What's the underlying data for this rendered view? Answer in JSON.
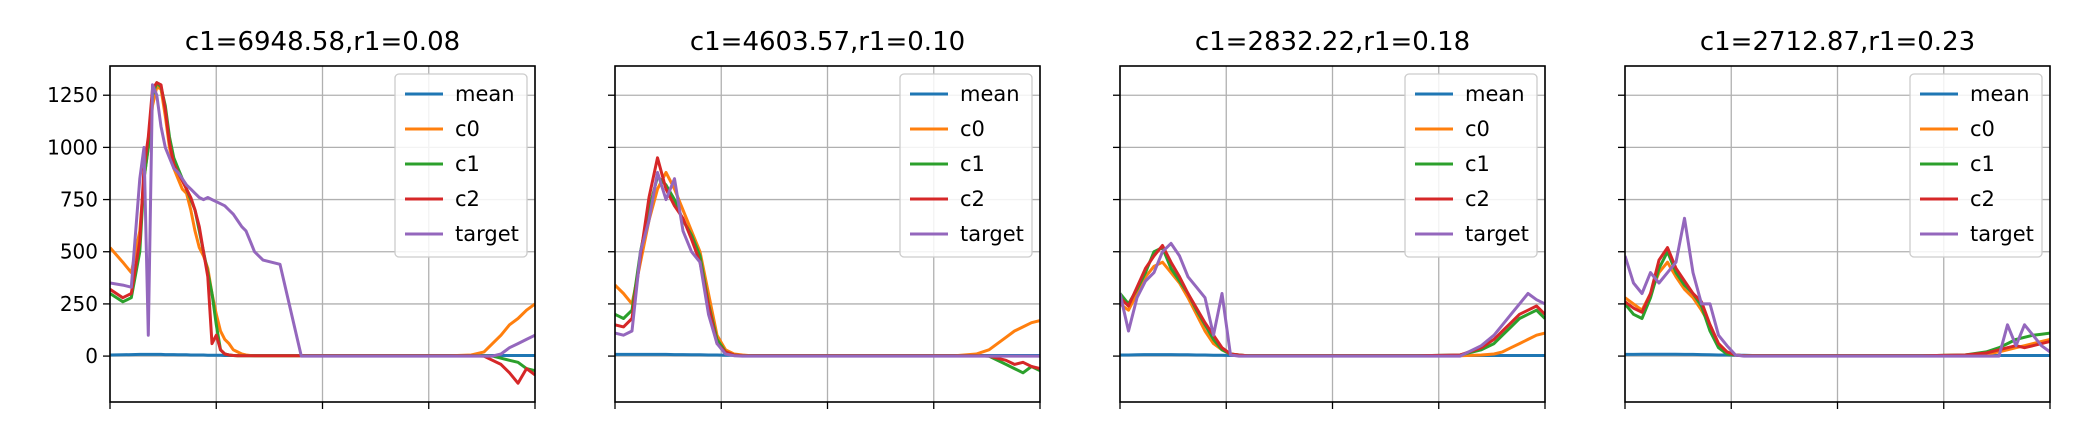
{
  "colors": {
    "mean": "#1f77b4",
    "c0": "#ff7f0e",
    "c1": "#2ca02c",
    "c2": "#d62728",
    "target": "#9467bd",
    "grid": "#b0b0b0"
  },
  "chart_data": [
    {
      "type": "line",
      "title": "c1=6948.58,r1=0.08",
      "xlim": [
        0,
        100
      ],
      "ylim": [
        -220,
        1390
      ],
      "yticks": [
        0,
        250,
        500,
        750,
        1000,
        1250
      ],
      "grid": true,
      "legend": "top-right",
      "x": [
        0,
        3,
        5,
        7,
        8,
        9,
        10,
        11,
        12,
        13,
        14,
        15,
        16,
        17,
        18,
        19,
        20,
        21,
        22,
        23,
        24,
        25,
        26,
        27,
        28,
        29,
        30,
        31,
        32,
        33,
        34,
        35,
        36,
        40,
        45,
        50,
        60,
        70,
        80,
        85,
        88,
        90,
        92,
        94,
        96,
        98,
        100
      ],
      "series": [
        {
          "name": "mean",
          "values": [
            5,
            6,
            7,
            8,
            8,
            8,
            8,
            8,
            8,
            7,
            7,
            7,
            6,
            6,
            6,
            5,
            5,
            5,
            5,
            4,
            4,
            4,
            4,
            3,
            3,
            3,
            3,
            3,
            3,
            3,
            3,
            3,
            3,
            3,
            3,
            3,
            3,
            3,
            3,
            3,
            3,
            3,
            3,
            3,
            3,
            3,
            3
          ]
        },
        {
          "name": "c0",
          "values": [
            520,
            450,
            400,
            600,
            850,
            1000,
            1200,
            1290,
            1280,
            1150,
            1000,
            900,
            850,
            800,
            780,
            700,
            600,
            520,
            480,
            420,
            300,
            200,
            120,
            80,
            60,
            30,
            20,
            10,
            5,
            3,
            2,
            2,
            2,
            2,
            2,
            2,
            2,
            2,
            2,
            5,
            20,
            60,
            100,
            150,
            180,
            220,
            250
          ]
        },
        {
          "name": "c1",
          "values": [
            300,
            260,
            280,
            500,
            850,
            1000,
            1250,
            1310,
            1290,
            1200,
            1050,
            950,
            900,
            850,
            800,
            750,
            700,
            600,
            500,
            400,
            300,
            150,
            30,
            10,
            5,
            3,
            2,
            2,
            2,
            2,
            2,
            2,
            2,
            2,
            2,
            2,
            2,
            2,
            2,
            2,
            2,
            0,
            -10,
            -20,
            -30,
            -60,
            -70
          ]
        },
        {
          "name": "c2",
          "values": [
            320,
            280,
            300,
            550,
            900,
            1050,
            1280,
            1310,
            1300,
            1180,
            1020,
            920,
            880,
            840,
            800,
            760,
            700,
            620,
            500,
            380,
            60,
            100,
            30,
            10,
            5,
            3,
            2,
            2,
            2,
            2,
            2,
            2,
            2,
            2,
            2,
            2,
            2,
            2,
            2,
            2,
            0,
            -20,
            -40,
            -80,
            -130,
            -60,
            -90
          ]
        },
        {
          "name": "target",
          "values": [
            350,
            340,
            330,
            850,
            1000,
            100,
            1300,
            1250,
            1100,
            1000,
            950,
            900,
            880,
            850,
            820,
            800,
            780,
            760,
            750,
            760,
            750,
            740,
            730,
            720,
            700,
            680,
            650,
            620,
            600,
            550,
            500,
            480,
            460,
            440,
            0,
            0,
            0,
            0,
            0,
            0,
            0,
            0,
            10,
            40,
            60,
            80,
            100
          ]
        }
      ]
    },
    {
      "type": "line",
      "title": "c1=4603.57,r1=0.10",
      "xlim": [
        0,
        100
      ],
      "ylim": [
        -220,
        1390
      ],
      "yticks": [
        0,
        250,
        500,
        750,
        1000,
        1250
      ],
      "grid": true,
      "legend": "top-right",
      "x": [
        0,
        2,
        4,
        6,
        8,
        10,
        12,
        14,
        16,
        18,
        20,
        22,
        24,
        26,
        28,
        30,
        32,
        34,
        36,
        40,
        50,
        60,
        70,
        80,
        85,
        88,
        90,
        92,
        94,
        96,
        98,
        100
      ],
      "series": [
        {
          "name": "mean",
          "values": [
            8,
            8,
            8,
            8,
            8,
            8,
            8,
            7,
            7,
            6,
            6,
            5,
            5,
            4,
            4,
            3,
            3,
            3,
            3,
            3,
            3,
            3,
            3,
            3,
            3,
            3,
            3,
            3,
            3,
            3,
            3,
            3
          ]
        },
        {
          "name": "c0",
          "values": [
            340,
            300,
            250,
            450,
            650,
            800,
            880,
            800,
            700,
            600,
            500,
            300,
            100,
            30,
            10,
            5,
            2,
            2,
            2,
            2,
            2,
            2,
            2,
            2,
            10,
            30,
            60,
            90,
            120,
            140,
            160,
            170
          ]
        },
        {
          "name": "c1",
          "values": [
            200,
            180,
            220,
            500,
            700,
            860,
            820,
            750,
            650,
            580,
            480,
            250,
            80,
            20,
            5,
            2,
            2,
            2,
            2,
            2,
            2,
            2,
            2,
            2,
            2,
            0,
            -20,
            -40,
            -60,
            -80,
            -50,
            -70
          ]
        },
        {
          "name": "c2",
          "values": [
            150,
            140,
            180,
            480,
            760,
            950,
            800,
            720,
            660,
            560,
            450,
            240,
            60,
            20,
            5,
            2,
            2,
            2,
            2,
            2,
            2,
            2,
            2,
            2,
            2,
            0,
            -10,
            -20,
            -40,
            -30,
            -50,
            -60
          ]
        },
        {
          "name": "target",
          "values": [
            110,
            100,
            120,
            500,
            650,
            880,
            750,
            850,
            600,
            500,
            450,
            200,
            60,
            10,
            2,
            0,
            0,
            0,
            0,
            0,
            0,
            0,
            0,
            0,
            0,
            0,
            0,
            0,
            0,
            0,
            0,
            0
          ]
        }
      ]
    },
    {
      "type": "line",
      "title": "c1=2832.22,r1=0.18",
      "xlim": [
        0,
        100
      ],
      "ylim": [
        -220,
        1390
      ],
      "yticks": [
        0,
        250,
        500,
        750,
        1000,
        1250
      ],
      "grid": true,
      "legend": "top-right",
      "x": [
        0,
        2,
        4,
        6,
        8,
        10,
        12,
        14,
        16,
        18,
        20,
        22,
        24,
        26,
        28,
        30,
        32,
        34,
        36,
        40,
        50,
        60,
        70,
        80,
        85,
        88,
        90,
        92,
        94,
        96,
        98,
        100
      ],
      "series": [
        {
          "name": "mean",
          "values": [
            5,
            5,
            6,
            7,
            7,
            7,
            7,
            6,
            6,
            5,
            5,
            4,
            4,
            3,
            3,
            3,
            3,
            3,
            3,
            3,
            3,
            3,
            3,
            3,
            3,
            3,
            3,
            3,
            3,
            3,
            3,
            3
          ]
        },
        {
          "name": "c0",
          "values": [
            250,
            220,
            300,
            380,
            430,
            450,
            400,
            350,
            280,
            200,
            120,
            60,
            30,
            10,
            5,
            2,
            2,
            2,
            2,
            2,
            2,
            2,
            2,
            2,
            5,
            10,
            20,
            40,
            60,
            80,
            100,
            110
          ]
        },
        {
          "name": "c1",
          "values": [
            300,
            250,
            320,
            400,
            500,
            520,
            420,
            360,
            300,
            220,
            150,
            80,
            30,
            10,
            5,
            2,
            2,
            2,
            2,
            2,
            2,
            2,
            2,
            5,
            30,
            60,
            100,
            140,
            180,
            200,
            220,
            180
          ]
        },
        {
          "name": "c2",
          "values": [
            280,
            240,
            330,
            420,
            480,
            530,
            450,
            380,
            300,
            230,
            160,
            100,
            40,
            10,
            5,
            2,
            2,
            2,
            2,
            2,
            2,
            2,
            2,
            5,
            40,
            80,
            120,
            160,
            200,
            220,
            240,
            200
          ]
        },
        {
          "name": "target",
          "values": [
            300,
            120,
            280,
            360,
            400,
            500,
            540,
            480,
            380,
            330,
            280,
            100,
            300,
            5,
            0,
            0,
            0,
            0,
            0,
            0,
            0,
            0,
            0,
            0,
            50,
            100,
            150,
            200,
            250,
            300,
            270,
            250
          ]
        }
      ]
    },
    {
      "type": "line",
      "title": "c1=2712.87,r1=0.23",
      "xlim": [
        0,
        100
      ],
      "ylim": [
        -220,
        1390
      ],
      "yticks": [
        0,
        250,
        500,
        750,
        1000,
        1250
      ],
      "grid": true,
      "legend": "top-right",
      "x": [
        0,
        2,
        4,
        6,
        8,
        10,
        12,
        14,
        16,
        18,
        20,
        22,
        24,
        26,
        28,
        30,
        32,
        34,
        40,
        50,
        60,
        70,
        80,
        85,
        88,
        90,
        92,
        94,
        96,
        98,
        100
      ],
      "series": [
        {
          "name": "mean",
          "values": [
            8,
            8,
            9,
            9,
            9,
            9,
            9,
            8,
            8,
            7,
            6,
            5,
            5,
            4,
            4,
            3,
            3,
            3,
            3,
            3,
            3,
            3,
            3,
            3,
            3,
            3,
            3,
            3,
            3,
            3,
            3
          ]
        },
        {
          "name": "c0",
          "values": [
            280,
            250,
            220,
            300,
            400,
            450,
            380,
            320,
            280,
            220,
            150,
            60,
            20,
            5,
            2,
            2,
            2,
            2,
            2,
            2,
            2,
            2,
            5,
            10,
            20,
            30,
            40,
            50,
            60,
            70,
            80
          ]
        },
        {
          "name": "c1",
          "values": [
            250,
            200,
            180,
            280,
            420,
            500,
            400,
            340,
            300,
            240,
            120,
            40,
            10,
            5,
            2,
            2,
            2,
            2,
            2,
            2,
            2,
            2,
            5,
            20,
            40,
            60,
            80,
            90,
            100,
            105,
            110
          ]
        },
        {
          "name": "c2",
          "values": [
            260,
            230,
            210,
            300,
            460,
            520,
            420,
            360,
            300,
            260,
            150,
            60,
            20,
            5,
            2,
            2,
            2,
            2,
            2,
            2,
            2,
            2,
            5,
            15,
            30,
            40,
            50,
            40,
            50,
            60,
            70
          ]
        },
        {
          "name": "target",
          "values": [
            480,
            350,
            300,
            400,
            350,
            400,
            450,
            660,
            400,
            250,
            250,
            100,
            50,
            5,
            0,
            0,
            0,
            0,
            0,
            0,
            0,
            0,
            0,
            0,
            0,
            150,
            50,
            150,
            100,
            50,
            20
          ]
        }
      ]
    }
  ]
}
